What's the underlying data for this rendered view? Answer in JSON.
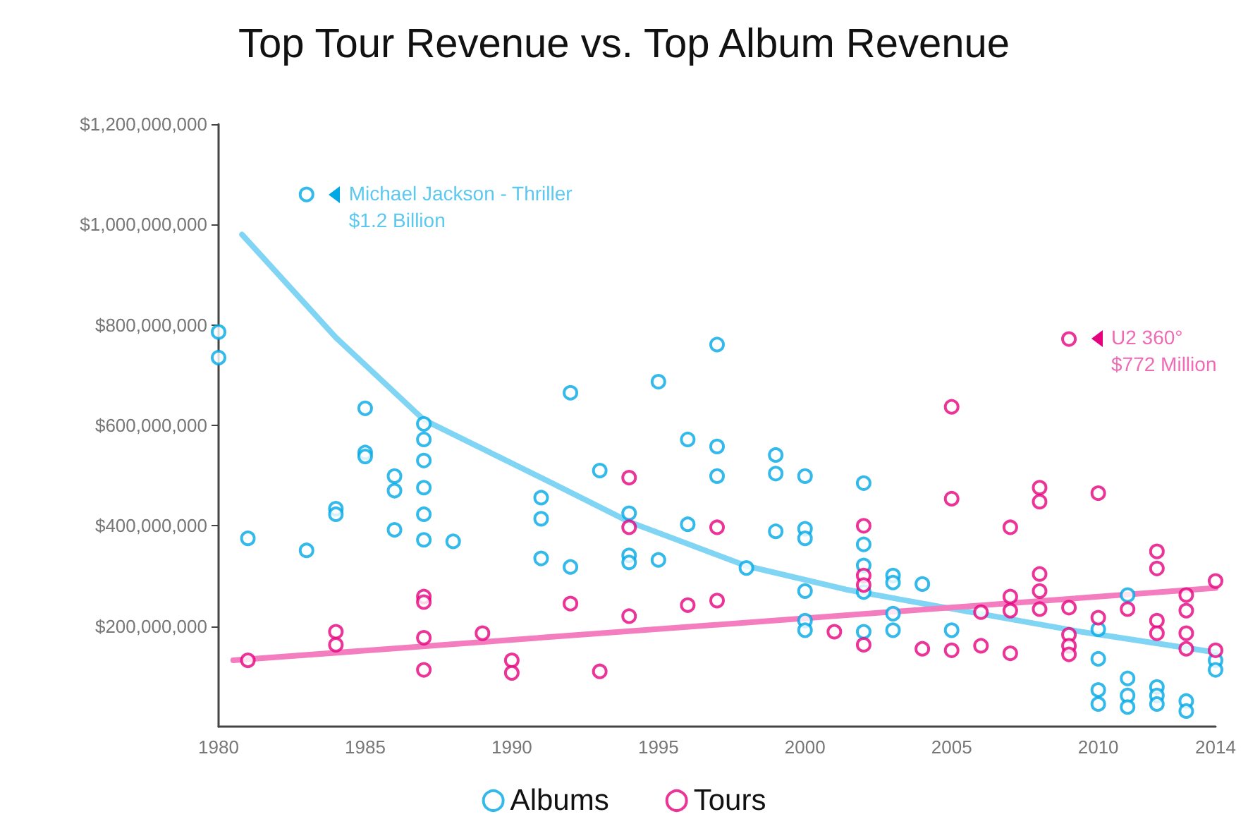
{
  "chart_data": {
    "type": "scatter",
    "title": "Top Tour Revenue vs. Top Album Revenue",
    "xlim": [
      1980,
      2014
    ],
    "xticks": [
      1980,
      1985,
      1990,
      1995,
      2000,
      2005,
      2010,
      2014
    ],
    "ylim": [
      0,
      1200000000
    ],
    "yticks": [
      {
        "value": 200000000,
        "label": "$200,000,000"
      },
      {
        "value": 400000000,
        "label": "$400,000,000"
      },
      {
        "value": 600000000,
        "label": "$600,000,000"
      },
      {
        "value": 800000000,
        "label": "$800,000,000"
      },
      {
        "value": 1000000000,
        "label": "$1,000,000,000"
      },
      {
        "value": 1200000000,
        "label": "$1,200,000,000"
      }
    ],
    "grid": false,
    "legend": "bottom",
    "marker": "circle",
    "series": [
      {
        "name": "Albums",
        "color": "#00a9e6",
        "x": [
          1980,
          1980,
          1981,
          1983,
          1983,
          1984,
          1984,
          1985,
          1985,
          1985,
          1986,
          1986,
          1986,
          1987,
          1987,
          1987,
          1987,
          1987,
          1987,
          1988,
          1991,
          1991,
          1991,
          1992,
          1992,
          1993,
          1994,
          1994,
          1994,
          1995,
          1995,
          1996,
          1996,
          1997,
          1997,
          1997,
          1998,
          1999,
          1999,
          1999,
          2000,
          2000,
          2000,
          2000,
          2000,
          2000,
          2002,
          2002,
          2002,
          2002,
          2002,
          2003,
          2003,
          2003,
          2003,
          2004,
          2005,
          2010,
          2010,
          2010,
          2010,
          2011,
          2011,
          2011,
          2011,
          2012,
          2012,
          2012,
          2013,
          2013,
          2014,
          2014
        ],
        "values": [
          786000000,
          735000000,
          375000000,
          1060000000,
          351000000,
          434000000,
          423000000,
          634000000,
          546000000,
          538000000,
          499000000,
          470000000,
          392000000,
          603000000,
          572000000,
          530000000,
          476000000,
          423000000,
          372000000,
          369000000,
          456000000,
          414000000,
          335000000,
          665000000,
          318000000,
          510000000,
          425000000,
          341000000,
          327000000,
          687000000,
          332000000,
          572000000,
          403000000,
          761000000,
          558000000,
          499000000,
          316000000,
          541000000,
          504000000,
          389000000,
          499000000,
          394000000,
          375000000,
          270000000,
          211000000,
          192000000,
          485000000,
          363000000,
          321000000,
          268000000,
          189000000,
          301000000,
          287000000,
          225000000,
          192000000,
          284000000,
          192000000,
          194000000,
          135000000,
          73000000,
          45000000,
          262000000,
          96000000,
          62000000,
          39000000,
          79000000,
          62000000,
          45000000,
          51000000,
          31000000,
          132000000,
          113000000
        ]
      },
      {
        "name": "Tours",
        "color": "#e6007e",
        "x": [
          1981,
          1984,
          1984,
          1987,
          1987,
          1987,
          1987,
          1989,
          1990,
          1990,
          1992,
          1993,
          1994,
          1994,
          1994,
          1996,
          1997,
          1997,
          2001,
          2002,
          2002,
          2002,
          2002,
          2004,
          2005,
          2005,
          2005,
          2006,
          2006,
          2007,
          2007,
          2007,
          2007,
          2008,
          2008,
          2008,
          2008,
          2008,
          2009,
          2009,
          2009,
          2009,
          2009,
          2010,
          2010,
          2011,
          2012,
          2012,
          2012,
          2012,
          2013,
          2013,
          2013,
          2013,
          2014,
          2014
        ],
        "values": [
          132000000,
          189000000,
          163000000,
          259000000,
          248000000,
          177000000,
          113000000,
          186000000,
          132000000,
          107000000,
          245000000,
          110000000,
          496000000,
          397000000,
          220000000,
          242000000,
          397000000,
          251000000,
          189000000,
          400000000,
          301000000,
          282000000,
          163000000,
          155000000,
          637000000,
          454000000,
          152000000,
          228000000,
          161000000,
          397000000,
          259000000,
          231000000,
          146000000,
          476000000,
          448000000,
          304000000,
          270000000,
          234000000,
          772000000,
          237000000,
          183000000,
          161000000,
          144000000,
          465000000,
          217000000,
          234000000,
          349000000,
          315000000,
          211000000,
          186000000,
          262000000,
          231000000,
          186000000,
          155000000,
          290000000,
          152000000
        ]
      },
      {
        "type": "line",
        "marker": "none",
        "color": "#80d4f4",
        "x": [
          1980.8,
          1984,
          1987,
          1991.3,
          1994,
          1998,
          2001.4,
          2004.6,
          2009.4,
          2014
        ],
        "values": [
          980000000,
          775000000,
          611000000,
          487000000,
          408000000,
          320000000,
          273000000,
          239000000,
          189000000,
          148000000
        ]
      },
      {
        "type": "line",
        "marker": "none",
        "color": "#f37dbf",
        "x": [
          1980.5,
          2014
        ],
        "values": [
          132000000,
          276000000
        ]
      }
    ],
    "annotations": [
      {
        "text": "Michael Jackson - Thriller\n$1.2 Billion",
        "x": 1983,
        "y": 1060000000
      },
      {
        "text": "U2 360°\n$772 Million",
        "x": 2009,
        "y": 772000000
      }
    ]
  }
}
